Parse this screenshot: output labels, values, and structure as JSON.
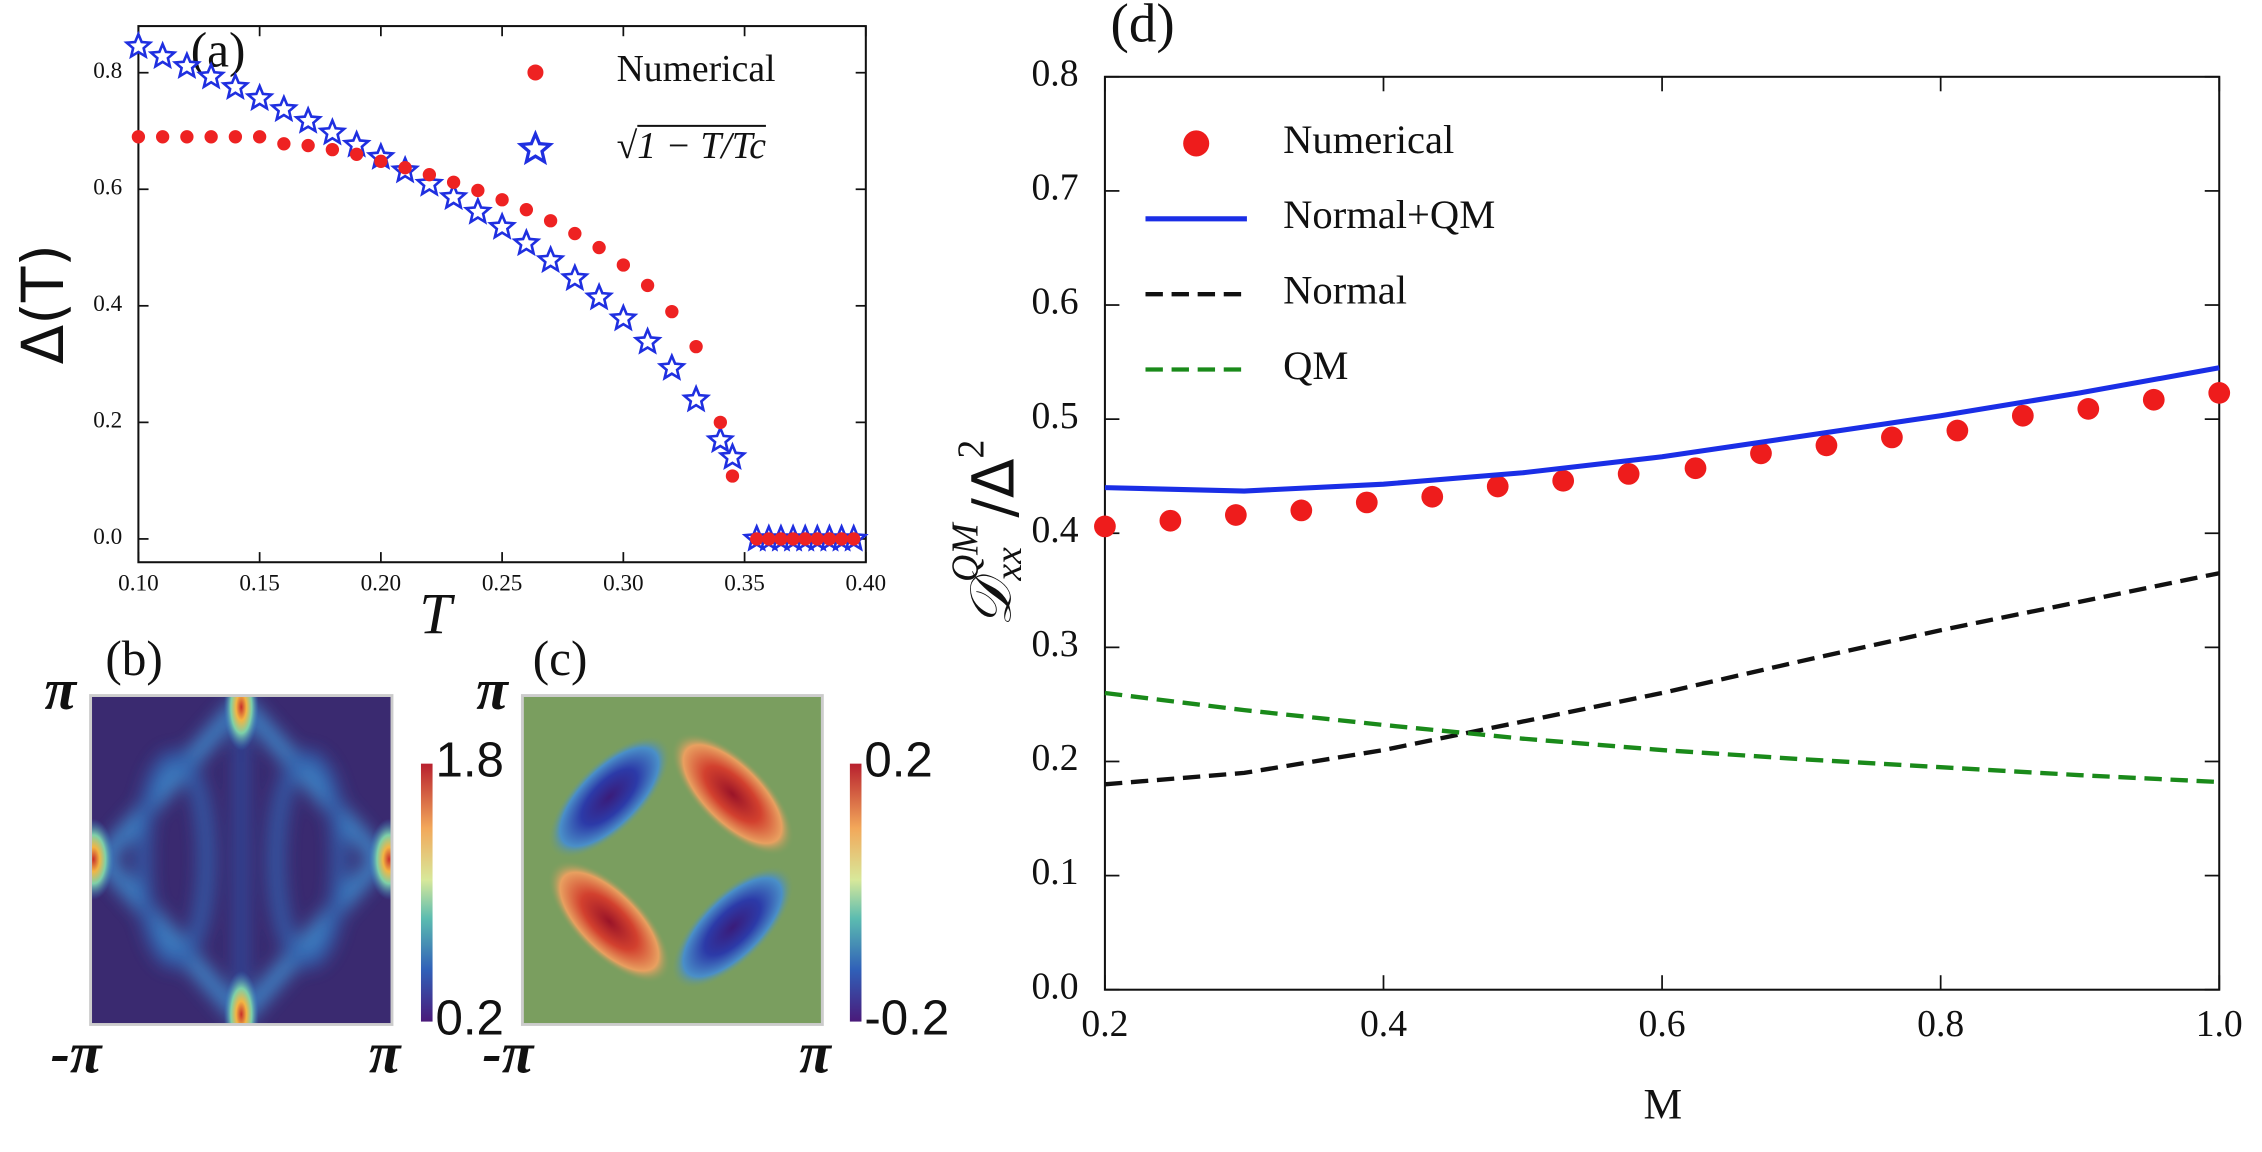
{
  "chart_data": [
    {
      "type": "scatter",
      "label": "(a)",
      "xlabel": "T",
      "ylabel": "Δ(T)",
      "xlim": [
        0.1,
        0.4
      ],
      "ylim": [
        -0.04,
        0.88
      ],
      "xticks": [
        {
          "value": 0.1,
          "label": "0.10"
        },
        {
          "value": 0.15,
          "label": "0.15"
        },
        {
          "value": 0.2,
          "label": "0.20"
        },
        {
          "value": 0.25,
          "label": "0.25"
        },
        {
          "value": 0.3,
          "label": "0.30"
        },
        {
          "value": 0.35,
          "label": "0.35"
        },
        {
          "value": 0.4,
          "label": "0.40"
        }
      ],
      "yticks": [
        {
          "value": 0,
          "label": "0.0"
        },
        0.2,
        0.4,
        0.6,
        0.8
      ],
      "legend": "upper right",
      "series": [
        {
          "name": "Numerical",
          "color": "#ee2222",
          "marker": "circle",
          "x": [
            0.1,
            0.11,
            0.12,
            0.13,
            0.14,
            0.15,
            0.16,
            0.17,
            0.18,
            0.19,
            0.2,
            0.21,
            0.22,
            0.23,
            0.24,
            0.25,
            0.26,
            0.27,
            0.28,
            0.29,
            0.3,
            0.31,
            0.32,
            0.33,
            0.34,
            0.345,
            0.355,
            0.36,
            0.365,
            0.37,
            0.375,
            0.38,
            0.385,
            0.39,
            0.395
          ],
          "values": [
            0.69,
            0.69,
            0.69,
            0.69,
            0.69,
            0.69,
            0.678,
            0.675,
            0.668,
            0.66,
            0.648,
            0.637,
            0.625,
            0.612,
            0.598,
            0.582,
            0.565,
            0.546,
            0.524,
            0.5,
            0.47,
            0.435,
            0.39,
            0.33,
            0.2,
            0.108,
            0,
            0,
            0,
            0,
            0,
            0,
            0,
            0,
            0
          ]
        },
        {
          "name": "√1 − T/Tc",
          "color": "#1f2fe0",
          "marker": "star",
          "x": [
            0.1,
            0.11,
            0.12,
            0.13,
            0.14,
            0.15,
            0.16,
            0.17,
            0.18,
            0.19,
            0.2,
            0.21,
            0.22,
            0.23,
            0.24,
            0.25,
            0.26,
            0.27,
            0.28,
            0.29,
            0.3,
            0.31,
            0.32,
            0.33,
            0.34,
            0.345,
            0.355,
            0.36,
            0.365,
            0.37,
            0.375,
            0.38,
            0.385,
            0.39,
            0.395
          ],
          "values": [
            0.845,
            0.828,
            0.811,
            0.793,
            0.775,
            0.756,
            0.737,
            0.717,
            0.697,
            0.676,
            0.655,
            0.632,
            0.609,
            0.586,
            0.561,
            0.535,
            0.507,
            0.478,
            0.447,
            0.414,
            0.378,
            0.338,
            0.293,
            0.239,
            0.169,
            0.14,
            0,
            0,
            0,
            0,
            0,
            0,
            0,
            0,
            0
          ]
        }
      ]
    },
    {
      "type": "heatmap",
      "label": "(b)",
      "xlim": [
        -3.1416,
        3.1416
      ],
      "ylim": [
        -3.1416,
        3.1416
      ],
      "xticks": [
        {
          "value": -3.1416,
          "label": "-π"
        },
        {
          "value": 3.1416,
          "label": "π"
        }
      ],
      "yticks": [
        {
          "value": 3.1416,
          "label": "π"
        }
      ],
      "clim": [
        0.2,
        1.8
      ],
      "cticks": [
        0.2,
        1.8
      ]
    },
    {
      "type": "heatmap",
      "label": "(c)",
      "xlim": [
        -3.1416,
        3.1416
      ],
      "ylim": [
        -3.1416,
        3.1416
      ],
      "xticks": [
        {
          "value": -3.1416,
          "label": "-π"
        },
        {
          "value": 3.1416,
          "label": "π"
        }
      ],
      "yticks": [
        {
          "value": 3.1416,
          "label": "π"
        }
      ],
      "clim": [
        -0.2,
        0.2
      ],
      "cticks": [
        -0.2,
        0.2
      ]
    },
    {
      "type": "line",
      "label": "(d)",
      "xlabel": "M",
      "ylabel": {
        "symbol": "𝒟",
        "sub": "xx",
        "sup": "QM",
        "over": "/Δ",
        "power": "2"
      },
      "xlim": [
        0.2,
        1.0
      ],
      "ylim": [
        0,
        0.8
      ],
      "xticks": [
        0.2,
        0.4,
        0.6,
        0.8,
        {
          "value": 1.0,
          "label": "1.0"
        }
      ],
      "yticks": [
        {
          "value": 0,
          "label": "0.0"
        },
        0.1,
        0.2,
        0.3,
        0.4,
        0.5,
        0.6,
        0.7,
        0.8
      ],
      "legend": "upper left",
      "series": [
        {
          "name": "Numerical",
          "color": "#ee1c1c",
          "marker": "circle",
          "x": [
            0.2,
            0.247,
            0.294,
            0.341,
            0.388,
            0.435,
            0.482,
            0.529,
            0.576,
            0.624,
            0.671,
            0.718,
            0.765,
            0.812,
            0.859,
            0.906,
            0.953,
            1.0
          ],
          "values": [
            0.406,
            0.411,
            0.416,
            0.42,
            0.427,
            0.432,
            0.441,
            0.446,
            0.452,
            0.457,
            0.47,
            0.477,
            0.484,
            0.49,
            0.503,
            0.509,
            0.517,
            0.523
          ]
        },
        {
          "name": "Normal+QM",
          "color": "#1a2ee6",
          "line": "solid",
          "x": [
            0.2,
            0.3,
            0.4,
            0.5,
            0.6,
            0.7,
            0.8,
            0.9,
            1.0
          ],
          "values": [
            0.44,
            0.437,
            0.443,
            0.453,
            0.467,
            0.485,
            0.503,
            0.523,
            0.545
          ]
        },
        {
          "name": "Normal",
          "color": "#111111",
          "line": "dashed",
          "x": [
            0.2,
            0.3,
            0.4,
            0.5,
            0.6,
            0.7,
            0.8,
            0.9,
            1.0
          ],
          "values": [
            0.18,
            0.19,
            0.21,
            0.235,
            0.26,
            0.288,
            0.315,
            0.34,
            0.365
          ]
        },
        {
          "name": "QM",
          "color": "#1a8a1a",
          "line": "dashed",
          "x": [
            0.2,
            0.3,
            0.4,
            0.5,
            0.6,
            0.7,
            0.8,
            0.9,
            1.0
          ],
          "values": [
            0.26,
            0.245,
            0.232,
            0.22,
            0.21,
            0.202,
            0.195,
            0.188,
            0.182
          ]
        }
      ]
    }
  ]
}
